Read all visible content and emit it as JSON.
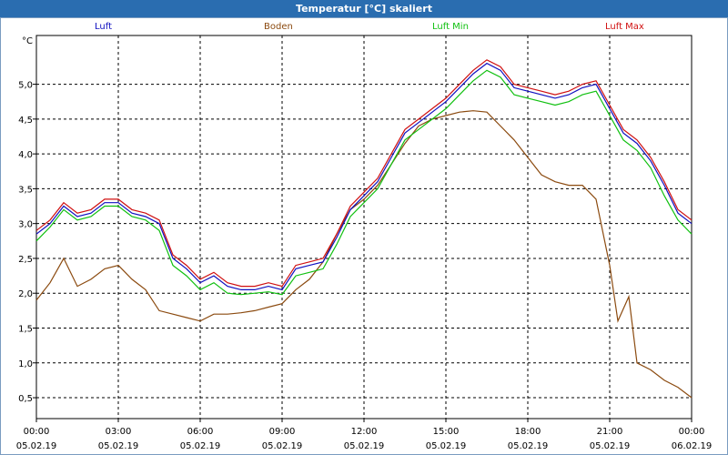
{
  "window_title": "Temperatur [°C] skaliert",
  "chart_data": {
    "type": "line",
    "title": "Temperatur [°C] skaliert",
    "ylabel": "°C",
    "ylim": [
      0.2,
      5.7
    ],
    "xlim_hours": [
      0,
      24
    ],
    "grid": true,
    "y_ticks": [
      "0,5",
      "1,0",
      "1,5",
      "2,0",
      "2,5",
      "3,0",
      "3,5",
      "4,0",
      "4,5",
      "5,0"
    ],
    "y_tick_values": [
      0.5,
      1.0,
      1.5,
      2.0,
      2.5,
      3.0,
      3.5,
      4.0,
      4.5,
      5.0
    ],
    "x_ticks": [
      {
        "hour": 0,
        "time": "00:00",
        "date": "05.02.19"
      },
      {
        "hour": 3,
        "time": "03:00",
        "date": "05.02.19"
      },
      {
        "hour": 6,
        "time": "06:00",
        "date": "05.02.19"
      },
      {
        "hour": 9,
        "time": "09:00",
        "date": "05.02.19"
      },
      {
        "hour": 12,
        "time": "12:00",
        "date": "05.02.19"
      },
      {
        "hour": 15,
        "time": "15:00",
        "date": "05.02.19"
      },
      {
        "hour": 18,
        "time": "18:00",
        "date": "05.02.19"
      },
      {
        "hour": 21,
        "time": "21:00",
        "date": "05.02.19"
      },
      {
        "hour": 24,
        "time": "00:00",
        "date": "06.02.19"
      }
    ],
    "series": [
      {
        "name": "Luft",
        "color": "#1010c0",
        "x": [
          0,
          0.5,
          1,
          1.5,
          2,
          2.5,
          3,
          3.5,
          4,
          4.5,
          5,
          5.5,
          6,
          6.5,
          7,
          7.5,
          8,
          8.5,
          9,
          9.5,
          10,
          10.5,
          11,
          11.5,
          12,
          12.5,
          13,
          13.5,
          14,
          14.5,
          15,
          15.5,
          16,
          16.5,
          17,
          17.5,
          18,
          18.5,
          19,
          19.5,
          20,
          20.5,
          21,
          21.5,
          22,
          22.5,
          23,
          23.5,
          24
        ],
        "values": [
          2.85,
          3.0,
          3.25,
          3.1,
          3.15,
          3.3,
          3.3,
          3.15,
          3.1,
          3.0,
          2.5,
          2.35,
          2.15,
          2.25,
          2.1,
          2.05,
          2.05,
          2.1,
          2.05,
          2.35,
          2.4,
          2.45,
          2.8,
          3.2,
          3.4,
          3.6,
          3.95,
          4.3,
          4.45,
          4.6,
          4.75,
          4.95,
          5.15,
          5.3,
          5.2,
          4.95,
          4.9,
          4.85,
          4.8,
          4.85,
          4.95,
          5.0,
          4.65,
          4.3,
          4.15,
          3.9,
          3.55,
          3.15,
          3.0
        ]
      },
      {
        "name": "Boden",
        "color": "#8b4a0f",
        "x": [
          0,
          0.5,
          1,
          1.5,
          2,
          2.5,
          3,
          3.5,
          4,
          4.5,
          5,
          5.5,
          6,
          6.5,
          7,
          7.5,
          8,
          8.5,
          9,
          9.5,
          10,
          10.5,
          11,
          11.5,
          12,
          12.5,
          13,
          13.5,
          14,
          14.5,
          15,
          15.5,
          16,
          16.5,
          17,
          17.5,
          18,
          18.5,
          19,
          19.5,
          20,
          20.5,
          21,
          21.3,
          21.7,
          22,
          22.5,
          23,
          23.5,
          24
        ],
        "values": [
          1.9,
          2.15,
          2.5,
          2.1,
          2.2,
          2.35,
          2.4,
          2.2,
          2.05,
          1.75,
          1.7,
          1.65,
          1.6,
          1.7,
          1.7,
          1.72,
          1.75,
          1.8,
          1.85,
          2.05,
          2.2,
          2.45,
          2.85,
          3.2,
          3.35,
          3.55,
          3.85,
          4.15,
          4.4,
          4.5,
          4.55,
          4.6,
          4.62,
          4.6,
          4.4,
          4.2,
          3.95,
          3.7,
          3.6,
          3.55,
          3.55,
          3.35,
          2.4,
          1.6,
          1.95,
          1.0,
          0.9,
          0.75,
          0.65,
          0.5
        ]
      },
      {
        "name": "Luft Min",
        "color": "#10c010",
        "x": [
          0,
          0.5,
          1,
          1.5,
          2,
          2.5,
          3,
          3.5,
          4,
          4.5,
          5,
          5.5,
          6,
          6.5,
          7,
          7.5,
          8,
          8.5,
          9,
          9.5,
          10,
          10.5,
          11,
          11.5,
          12,
          12.5,
          13,
          13.5,
          14,
          14.5,
          15,
          15.5,
          16,
          16.5,
          17,
          17.5,
          18,
          18.5,
          19,
          19.5,
          20,
          20.5,
          21,
          21.5,
          22,
          22.5,
          23,
          23.5,
          24
        ],
        "values": [
          2.75,
          2.95,
          3.2,
          3.05,
          3.1,
          3.25,
          3.25,
          3.1,
          3.05,
          2.9,
          2.4,
          2.25,
          2.05,
          2.15,
          2.0,
          1.98,
          2.0,
          2.02,
          1.98,
          2.25,
          2.3,
          2.35,
          2.7,
          3.1,
          3.3,
          3.5,
          3.85,
          4.2,
          4.35,
          4.5,
          4.65,
          4.85,
          5.05,
          5.2,
          5.1,
          4.85,
          4.8,
          4.75,
          4.7,
          4.75,
          4.85,
          4.9,
          4.55,
          4.2,
          4.05,
          3.8,
          3.4,
          3.05,
          2.85
        ]
      },
      {
        "name": "Luft Max",
        "color": "#d01010",
        "x": [
          0,
          0.5,
          1,
          1.5,
          2,
          2.5,
          3,
          3.5,
          4,
          4.5,
          5,
          5.5,
          6,
          6.5,
          7,
          7.5,
          8,
          8.5,
          9,
          9.5,
          10,
          10.5,
          11,
          11.5,
          12,
          12.5,
          13,
          13.5,
          14,
          14.5,
          15,
          15.5,
          16,
          16.5,
          17,
          17.5,
          18,
          18.5,
          19,
          19.5,
          20,
          20.5,
          21,
          21.5,
          22,
          22.5,
          23,
          23.5,
          24
        ],
        "values": [
          2.9,
          3.05,
          3.3,
          3.15,
          3.2,
          3.35,
          3.35,
          3.2,
          3.15,
          3.05,
          2.55,
          2.4,
          2.2,
          2.3,
          2.15,
          2.1,
          2.1,
          2.15,
          2.1,
          2.4,
          2.45,
          2.5,
          2.85,
          3.25,
          3.45,
          3.65,
          4.0,
          4.35,
          4.5,
          4.65,
          4.8,
          5.0,
          5.2,
          5.35,
          5.25,
          5.0,
          4.95,
          4.9,
          4.85,
          4.9,
          5.0,
          5.05,
          4.7,
          4.35,
          4.2,
          3.95,
          3.6,
          3.2,
          3.05
        ]
      }
    ]
  }
}
